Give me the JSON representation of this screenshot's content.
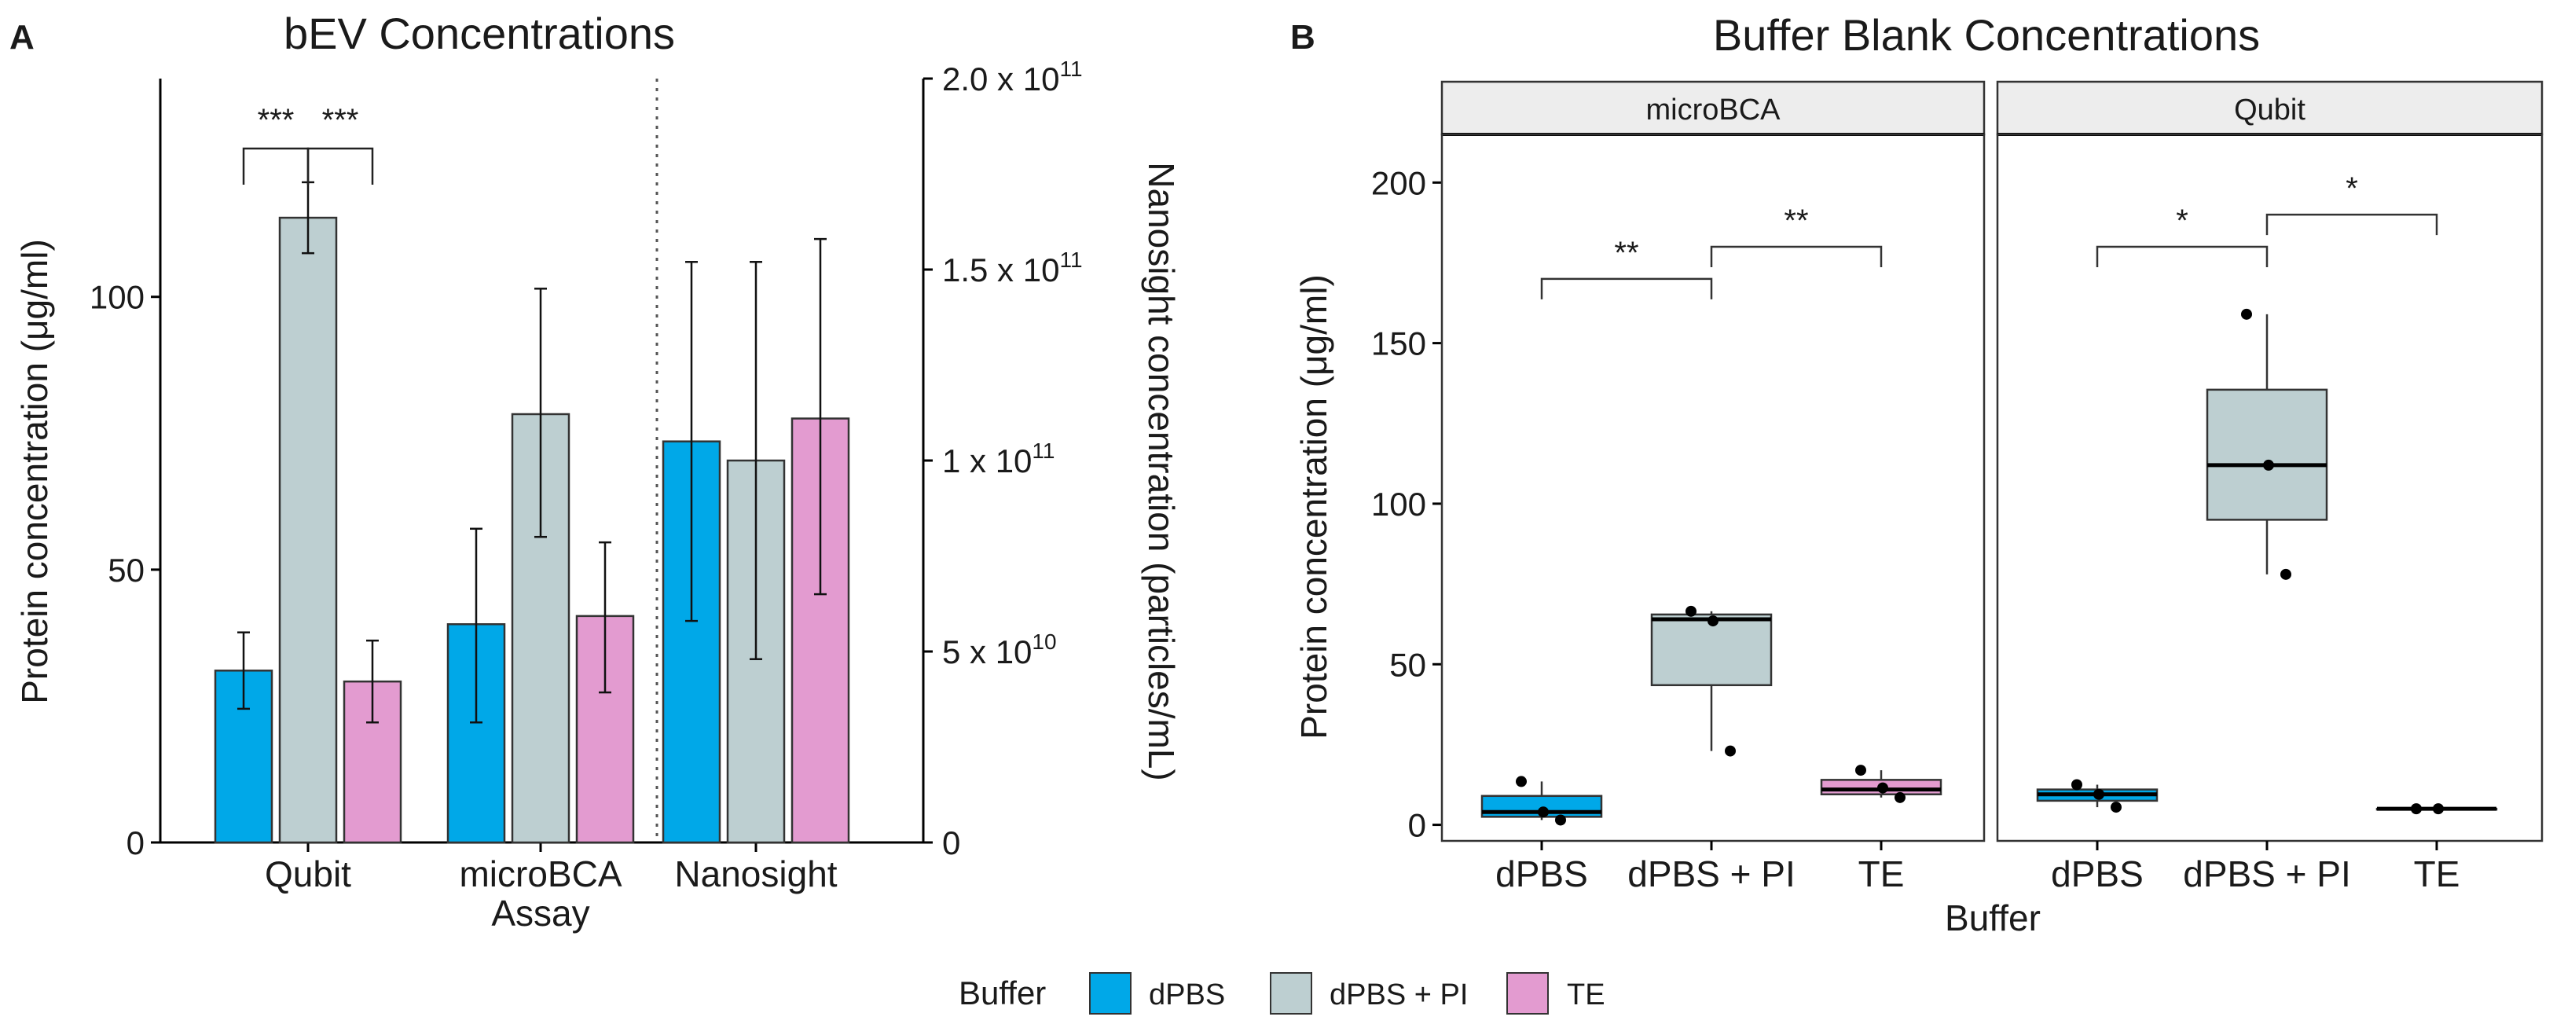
{
  "panel_a": {
    "letter": "A",
    "title": "bEV Concentrations",
    "ylabel": "Protein concentration (μg/ml)",
    "y2label": "Nanosight concentration (particles/mL)",
    "xlabel": "Assay",
    "sig_labels": [
      "***",
      "***"
    ]
  },
  "panel_b": {
    "letter": "B",
    "title": "Buffer Blank Concentrations",
    "ylabel": "Protein concentration (μg/ml)",
    "xlabel": "Buffer",
    "facets": [
      "microBCA",
      "Qubit"
    ],
    "sig_labels": [
      "**",
      "**",
      "*",
      "*"
    ]
  },
  "legend": {
    "title": "Buffer",
    "entries": [
      "dPBS",
      "dPBS + PI",
      "TE"
    ]
  },
  "colors": {
    "dPBS": "#00a8e8",
    "dPBS + PI": "#bdcfd1",
    "TE": "#e39bd0"
  },
  "chart_data": [
    {
      "type": "bar",
      "title": "bEV Concentrations",
      "xlabel": "Assay",
      "ylabel": "Protein concentration (μg/ml)",
      "y2label": "Nanosight concentration (particles/mL)",
      "categories": [
        "Qubit",
        "microBCA",
        "Nanosight"
      ],
      "series_names": [
        "dPBS",
        "dPBS + PI",
        "TE"
      ],
      "ylim": [
        0,
        140
      ],
      "yticks": [
        0,
        50,
        100
      ],
      "y2lim": [
        0,
        200000000000.0
      ],
      "y2ticks": [
        "0",
        "5 x 10",
        "1 x 10",
        "1.5 x 10",
        "2.0 x 10"
      ],
      "y2tick_exponents": [
        "",
        "10",
        "11",
        "11",
        "11"
      ],
      "y2tick_values": [
        0,
        50000000000.0,
        100000000000.0,
        150000000000.0,
        200000000000.0
      ],
      "groups": [
        {
          "category": "Qubit",
          "axis": "left",
          "values": [
            31.5,
            114.5,
            29.5
          ],
          "err_low": [
            24.5,
            108,
            22
          ],
          "err_high": [
            38.5,
            121,
            37
          ]
        },
        {
          "category": "microBCA",
          "axis": "left",
          "values": [
            40,
            78.5,
            41.5
          ],
          "err_low": [
            22,
            56,
            27.5
          ],
          "err_high": [
            57.5,
            101.5,
            55
          ]
        },
        {
          "category": "Nanosight",
          "axis": "right",
          "values": [
            105000000000.0,
            100000000000.0,
            111000000000.0
          ],
          "err_low": [
            58000000000.0,
            48000000000.0,
            65000000000.0
          ],
          "err_high": [
            152000000000.0,
            152000000000.0,
            158000000000.0
          ]
        }
      ],
      "significance": [
        {
          "group": "Qubit",
          "from": "dPBS",
          "to": "dPBS + PI",
          "label": "***"
        },
        {
          "group": "Qubit",
          "from": "dPBS + PI",
          "to": "TE",
          "label": "***"
        }
      ],
      "grid": false
    },
    {
      "type": "box",
      "title": "Buffer Blank Concentrations",
      "xlabel": "Buffer",
      "ylabel": "Protein concentration (μg/ml)",
      "ylim": [
        -5,
        215
      ],
      "yticks": [
        0,
        50,
        100,
        150,
        200
      ],
      "categories": [
        "dPBS",
        "dPBS + PI",
        "TE"
      ],
      "facets": [
        {
          "name": "microBCA",
          "boxes": [
            {
              "buffer": "dPBS",
              "q1": 2.5,
              "median": 4,
              "q3": 9,
              "whisker_low": 1.5,
              "whisker_high": 13.5,
              "points": [
                13.5,
                4,
                1.5
              ]
            },
            {
              "buffer": "dPBS + PI",
              "q1": 43.5,
              "median": 64,
              "q3": 65.5,
              "whisker_low": 23,
              "whisker_high": 66.5,
              "points": [
                66.5,
                63.5,
                23
              ]
            },
            {
              "buffer": "TE",
              "q1": 9.5,
              "median": 11,
              "q3": 14,
              "whisker_low": 8.5,
              "whisker_high": 17,
              "points": [
                17,
                11.5,
                8.5
              ]
            }
          ],
          "significance": [
            {
              "from": "dPBS",
              "to": "dPBS + PI",
              "label": "**"
            },
            {
              "from": "dPBS + PI",
              "to": "TE",
              "label": "**"
            }
          ]
        },
        {
          "name": "Qubit",
          "boxes": [
            {
              "buffer": "dPBS",
              "q1": 7.5,
              "median": 9.5,
              "q3": 11,
              "whisker_low": 5.5,
              "whisker_high": 12.5,
              "points": [
                12.5,
                9.5,
                5.5
              ]
            },
            {
              "buffer": "dPBS + PI",
              "q1": 95,
              "median": 112,
              "q3": 135.5,
              "whisker_low": 78,
              "whisker_high": 159,
              "points": [
                159,
                112,
                78
              ]
            },
            {
              "buffer": "TE",
              "q1": 5,
              "median": 5,
              "q3": 5,
              "whisker_low": 5,
              "whisker_high": 5,
              "points": [
                5,
                5
              ]
            }
          ],
          "significance": [
            {
              "from": "dPBS",
              "to": "dPBS + PI",
              "label": "*"
            },
            {
              "from": "dPBS + PI",
              "to": "TE",
              "label": "*"
            }
          ]
        }
      ],
      "grid": false
    }
  ]
}
